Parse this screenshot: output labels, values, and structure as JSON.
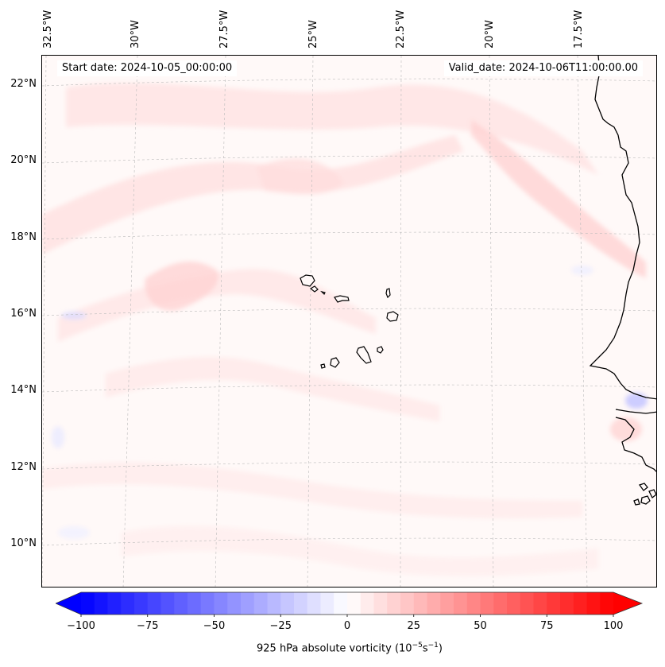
{
  "map": {
    "start_date": "Start date: 2024-10-05_00:00:00",
    "valid_date": "Valid_date: 2024-10-06T11:00:00.00",
    "lon_labels": [
      "32.5°W",
      "30°W",
      "27.5°W",
      "25°W",
      "22.5°W",
      "20°W",
      "17.5°W"
    ],
    "lat_labels": [
      "22°N",
      "20°N",
      "18°N",
      "16°N",
      "14°N",
      "12°N",
      "10°N"
    ],
    "islands": [
      "Santo Antão",
      "São Vicente",
      "Santa Luzia",
      "São Nicolau",
      "Sal",
      "Boa Vista",
      "Maio",
      "Santiago",
      "Fogo",
      "Brava"
    ],
    "coastline": "West Africa (Mauritania, Senegal, Gambia, Guinea-Bissau)"
  },
  "colorbar": {
    "ticks": [
      "−100",
      "−75",
      "−50",
      "−25",
      "0",
      "25",
      "50",
      "75",
      "100"
    ],
    "tick_values": [
      -100,
      -75,
      -50,
      -25,
      0,
      25,
      50,
      75,
      100
    ],
    "min": -100,
    "max": 100,
    "step": 5,
    "label": "925 hPa absolute vorticity (10",
    "label_exp1": "−5",
    "label_mid": "s",
    "label_exp2": "−1",
    "label_end": ")",
    "neg_color": "#0000ff",
    "pos_color": "#ff0000",
    "mid_color": "#ffffff"
  }
}
